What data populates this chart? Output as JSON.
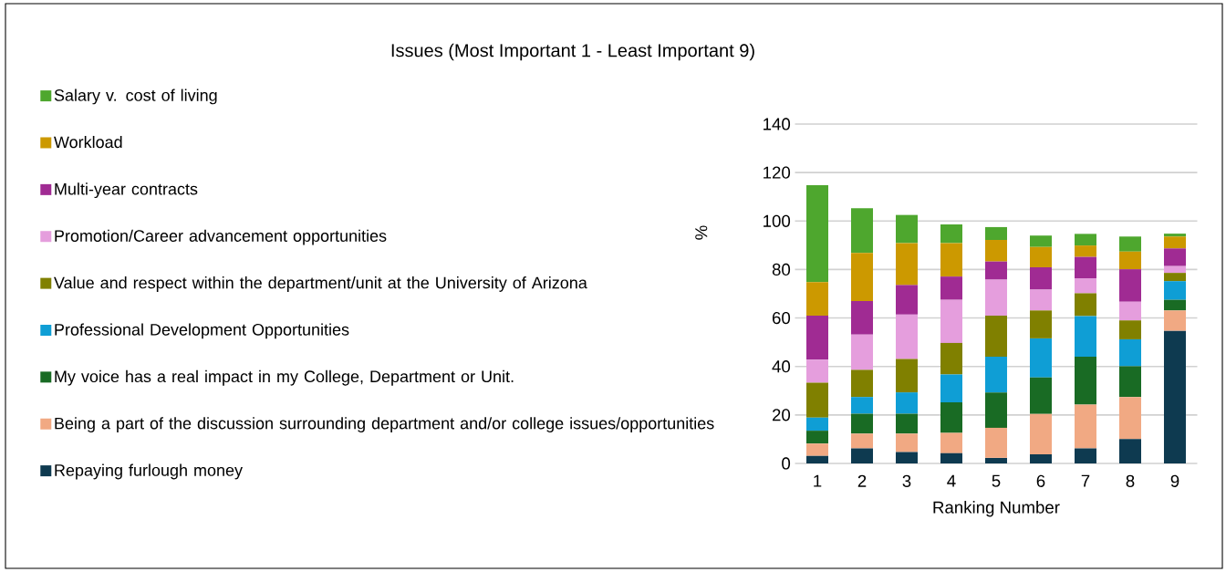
{
  "chart_data": {
    "type": "bar",
    "stacked": true,
    "title": "Issues (Most Important 1 - Least Important 9)",
    "xlabel": "Ranking Number",
    "ylabel": "%",
    "categories": [
      "1",
      "2",
      "3",
      "4",
      "5",
      "6",
      "7",
      "8",
      "9"
    ],
    "series": [
      {
        "name": "Repaying furlough money",
        "color": "#0e3a50",
        "values": [
          3.1,
          6.2,
          4.7,
          4.2,
          2.3,
          3.8,
          6.2,
          10.1,
          54.7
        ]
      },
      {
        "name": "Being a part of the discussion surrounding department and/or college issues/opportunities",
        "color": "#f1a983",
        "values": [
          5.1,
          6.1,
          7.6,
          8.4,
          12.4,
          16.6,
          18.1,
          17.3,
          8.4
        ]
      },
      {
        "name": "My voice has a real impact in my College, Department or Unit.",
        "color": "#196b24",
        "values": [
          5.3,
          8.2,
          8.2,
          12.6,
          14.6,
          15.1,
          19.7,
          12.7,
          4.4
        ]
      },
      {
        "name": "Professional Development Opportunities",
        "color": "#0f9ed5",
        "values": [
          5.4,
          6.9,
          8.8,
          11.5,
          14.7,
          16.1,
          16.8,
          11.1,
          7.7
        ]
      },
      {
        "name": "Value and respect within the department/unit at the University of Arizona",
        "color": "#808000",
        "values": [
          14.4,
          11.2,
          13.8,
          13.0,
          17.0,
          11.5,
          9.4,
          7.8,
          3.4
        ]
      },
      {
        "name": "Promotion/Career advancement opportunities",
        "color": "#e59edd",
        "values": [
          9.5,
          14.6,
          18.3,
          17.8,
          14.8,
          8.6,
          6.2,
          7.7,
          2.8
        ]
      },
      {
        "name": "Multi-year contracts",
        "color": "#a02b93",
        "values": [
          18.2,
          13.8,
          12.2,
          9.6,
          7.5,
          9.2,
          8.8,
          13.4,
          7.3
        ]
      },
      {
        "name": "Workload",
        "color": "#cc9900",
        "values": [
          13.8,
          19.8,
          17.3,
          13.8,
          8.9,
          8.4,
          4.7,
          7.3,
          4.9
        ]
      },
      {
        "name": "Salary v. cost of living",
        "color": "#4ea72e",
        "values": [
          40.0,
          18.5,
          11.6,
          7.7,
          5.3,
          4.7,
          4.8,
          6.2,
          1.2
        ]
      }
    ],
    "ylim": [
      0,
      140
    ],
    "yticks": [
      0,
      20,
      40,
      60,
      80,
      100,
      120,
      140
    ],
    "grid": "y",
    "legend": "left"
  }
}
